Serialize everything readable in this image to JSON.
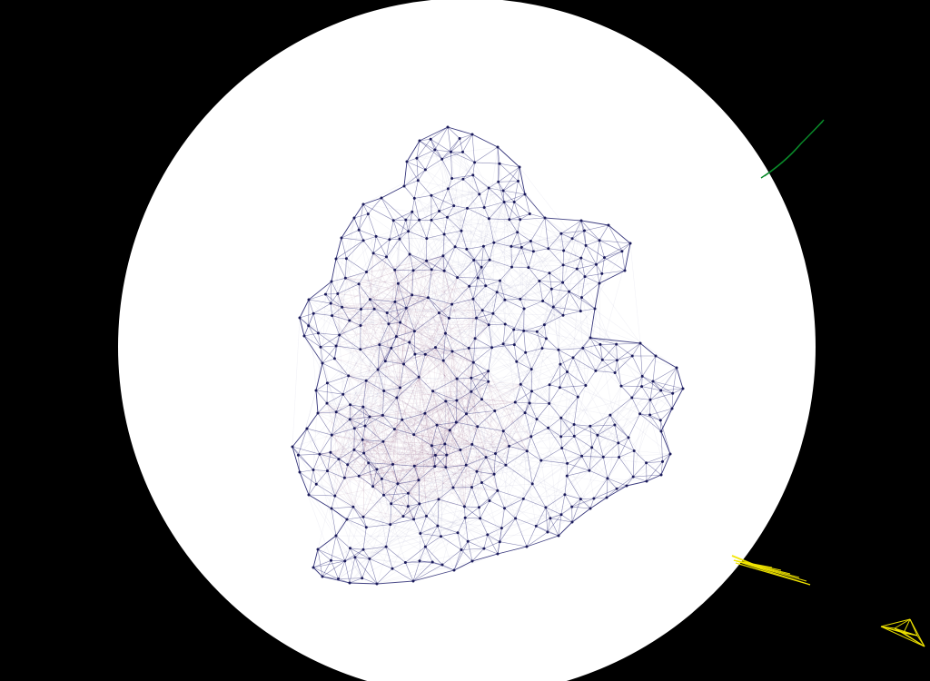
{
  "scene": {
    "background_color": "#000000",
    "disc_color": "#ffffff"
  },
  "graph": {
    "node_color": "#1a1a5a",
    "edge_color": "#2a2a7a",
    "hull_edge_color": "#1f1f6b",
    "highlight_color": "#6a1a4a",
    "seed": 7,
    "node_count": 430
  },
  "overlays": {
    "green_stroke_color": "#0a8a2a",
    "yellow_fan_color": "#f2e600",
    "yellow_cluster_color": "#f2e600"
  }
}
